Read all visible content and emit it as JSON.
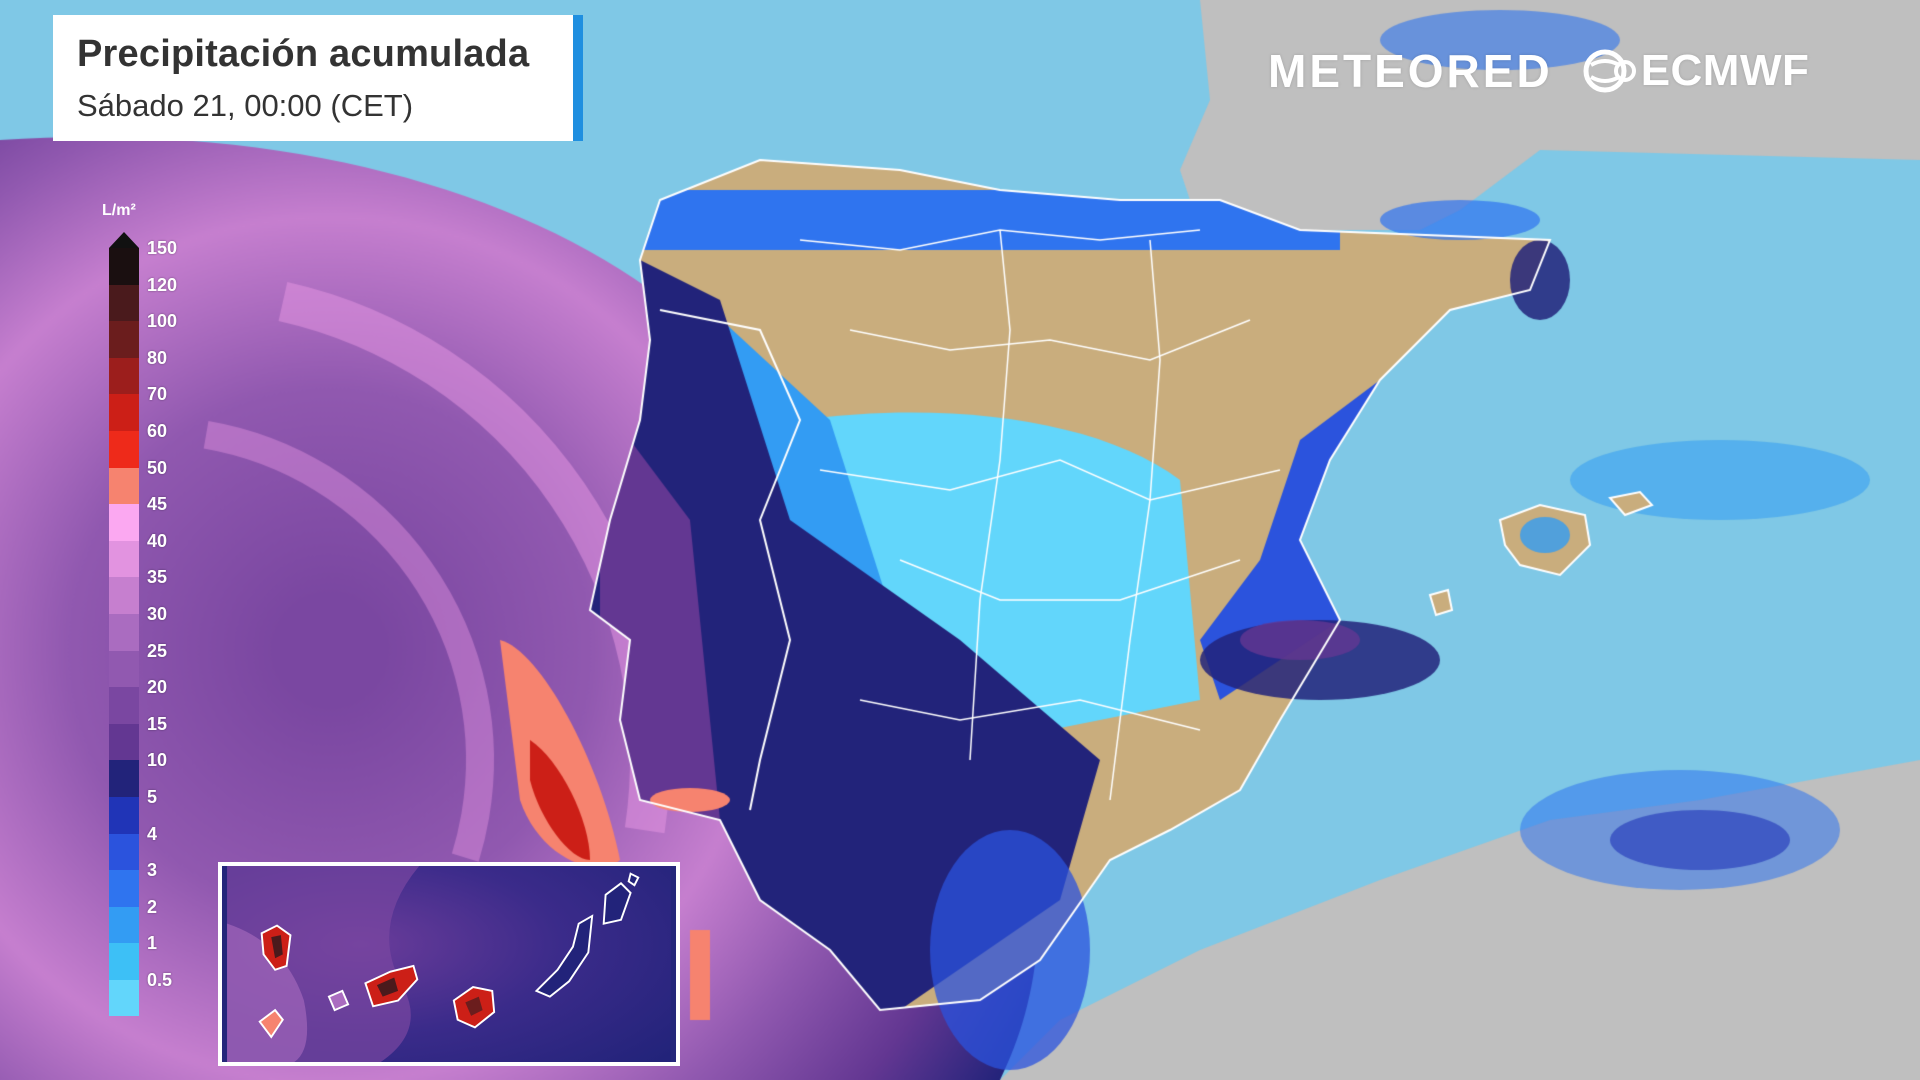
{
  "title": {
    "main": "Precipitación acumulada",
    "subtitle": "Sábado 21, 00:00 (CET)"
  },
  "logos": {
    "meteored": "METEORED",
    "ecmwf": "ECMWF"
  },
  "legend": {
    "unit": "L/m²",
    "items": [
      {
        "label": "150",
        "color": "#1a0f10"
      },
      {
        "label": "120",
        "color": "#4a1a1c"
      },
      {
        "label": "100",
        "color": "#6b1d1d"
      },
      {
        "label": "80",
        "color": "#9c1e1c"
      },
      {
        "label": "70",
        "color": "#cc1f17"
      },
      {
        "label": "60",
        "color": "#ee2a1a"
      },
      {
        "label": "50",
        "color": "#f6836f"
      },
      {
        "label": "45",
        "color": "#fba8f1"
      },
      {
        "label": "40",
        "color": "#e293e0"
      },
      {
        "label": "35",
        "color": "#c67fcf"
      },
      {
        "label": "30",
        "color": "#aa6cc0"
      },
      {
        "label": "25",
        "color": "#9159b0"
      },
      {
        "label": "20",
        "color": "#7a47a1"
      },
      {
        "label": "15",
        "color": "#633792"
      },
      {
        "label": "10",
        "color": "#22237a"
      },
      {
        "label": "5",
        "color": "#2034b7"
      },
      {
        "label": "4",
        "color": "#2b53dd"
      },
      {
        "label": "3",
        "color": "#2f74ef"
      },
      {
        "label": "2",
        "color": "#339cf3"
      },
      {
        "label": "1",
        "color": "#3dc0f6"
      },
      {
        "label": "0.5",
        "color": "#62d6fb"
      }
    ]
  },
  "colors": {
    "sea": "#7fc8e6",
    "land_dry": "#c9ad7d",
    "land_other": "#bfbfbf",
    "border_lines": "#ffffff",
    "title_accent": "#1f8fe0"
  }
}
